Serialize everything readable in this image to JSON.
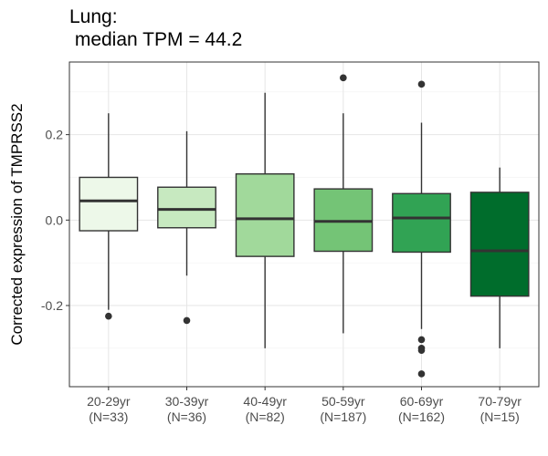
{
  "chart_data": {
    "type": "box",
    "title_line1": "Lung:",
    "title_line2": " median TPM = 44.2",
    "ylabel": "Corrected expression of TMPRSS2",
    "xlabel": "",
    "ylim": [
      -0.39,
      0.37
    ],
    "y_ticks": [
      {
        "value": 0.2,
        "label": "0.2"
      },
      {
        "value": 0.0,
        "label": "0.0"
      },
      {
        "value": -0.2,
        "label": "-0.2"
      }
    ],
    "grid": true,
    "categories": [
      {
        "label": "20-29yr",
        "n_label": "(N=33)",
        "fill": "#edf8e9",
        "whisker_low": -0.21,
        "q1": -0.025,
        "median": 0.045,
        "q3": 0.1,
        "whisker_high": 0.25,
        "outliers": [
          -0.225
        ]
      },
      {
        "label": "30-39yr",
        "n_label": "(N=36)",
        "fill": "#c7e9c0",
        "whisker_low": -0.13,
        "q1": -0.018,
        "median": 0.025,
        "q3": 0.077,
        "whisker_high": 0.208,
        "outliers": [
          -0.235
        ]
      },
      {
        "label": "40-49yr",
        "n_label": "(N=82)",
        "fill": "#a1d99b",
        "whisker_low": -0.3,
        "q1": -0.085,
        "median": 0.003,
        "q3": 0.108,
        "whisker_high": 0.298,
        "outliers": []
      },
      {
        "label": "50-59yr",
        "n_label": "(N=187)",
        "fill": "#74c476",
        "whisker_low": -0.265,
        "q1": -0.073,
        "median": -0.003,
        "q3": 0.073,
        "whisker_high": 0.25,
        "outliers": [
          0.333
        ]
      },
      {
        "label": "60-69yr",
        "n_label": "(N=162)",
        "fill": "#31a354",
        "whisker_low": -0.255,
        "q1": -0.075,
        "median": 0.005,
        "q3": 0.062,
        "whisker_high": 0.228,
        "outliers": [
          0.318,
          -0.28,
          -0.3,
          -0.305,
          -0.36
        ]
      },
      {
        "label": "70-79yr",
        "n_label": "(N=15)",
        "fill": "#006d2c",
        "whisker_low": -0.3,
        "q1": -0.178,
        "median": -0.072,
        "q3": 0.065,
        "whisker_high": 0.123,
        "outliers": []
      }
    ]
  }
}
